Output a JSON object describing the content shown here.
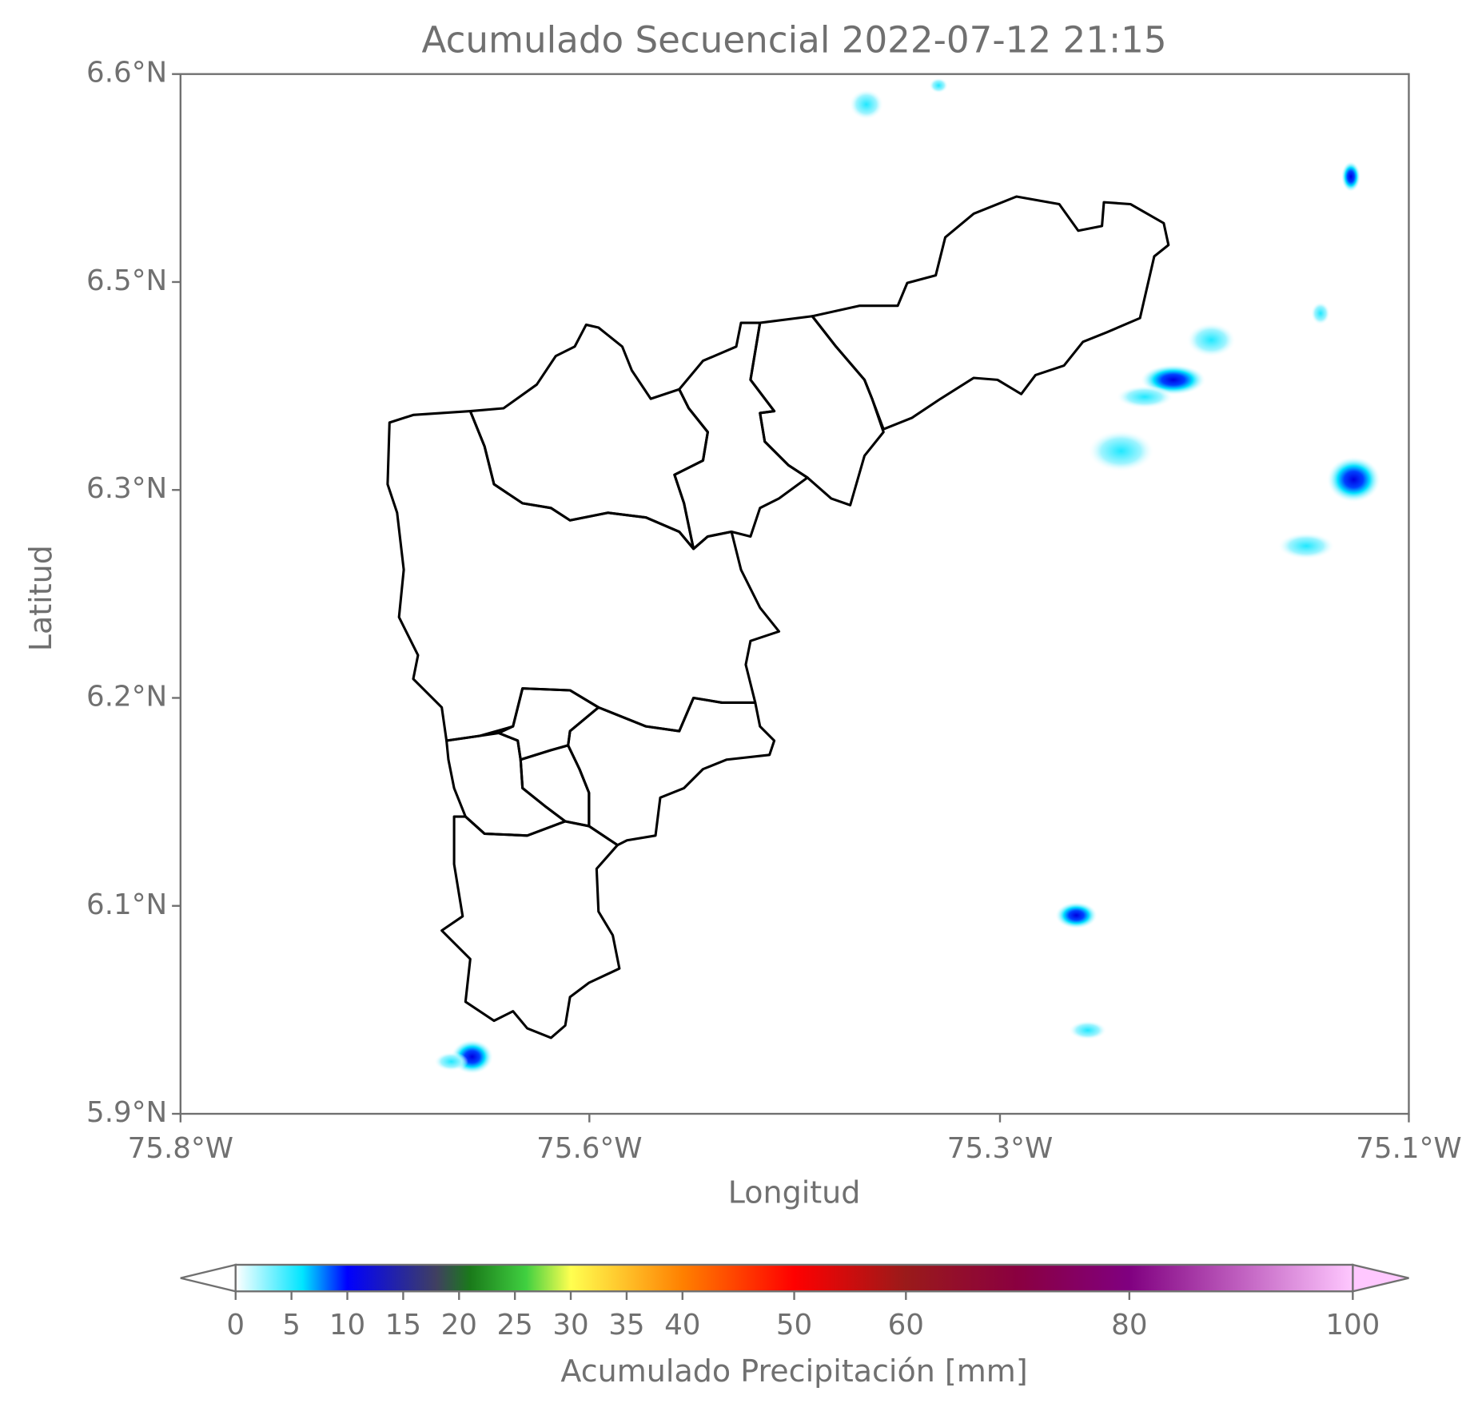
{
  "chart_data": {
    "type": "map",
    "title": "Acumulado Secuencial 2022-07-12 21:15",
    "x_label": "Longitud",
    "y_label": "Latitud",
    "xlim": [
      -75.8,
      -75.1
    ],
    "xticks": [
      {
        "value": -75.8,
        "label": "75.8°W"
      },
      {
        "value": -75.567,
        "label": "75.6°W"
      },
      {
        "value": -75.333,
        "label": "75.3°W"
      },
      {
        "value": -75.1,
        "label": "75.1°W"
      }
    ],
    "ylim": [
      5.92,
      6.6
    ],
    "yticks": [
      {
        "value": 5.92,
        "label": "5.9°N"
      },
      {
        "value": 6.056,
        "label": "6.1°N"
      },
      {
        "value": 6.192,
        "label": "6.2°N"
      },
      {
        "value": 6.328,
        "label": "6.3°N"
      },
      {
        "value": 6.464,
        "label": "6.5°N"
      },
      {
        "value": 6.6,
        "label": "6.6°N"
      }
    ],
    "colorbar": {
      "label": "Acumulado Precipitación [mm]",
      "lim": [
        0,
        100
      ],
      "ticks": [
        0,
        5,
        10,
        15,
        20,
        25,
        30,
        35,
        40,
        50,
        60,
        80,
        100
      ]
    }
  }
}
